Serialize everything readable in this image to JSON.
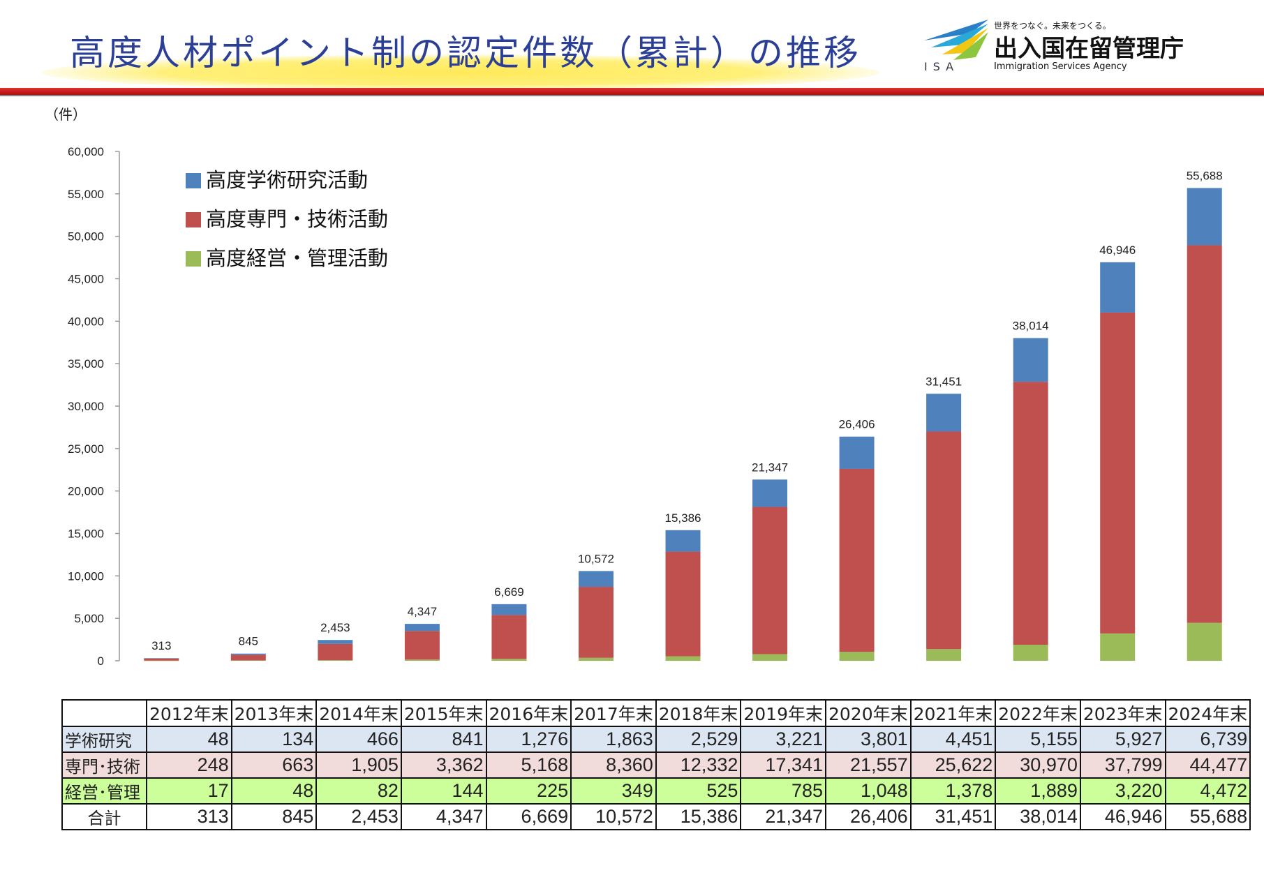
{
  "header": {
    "title": "高度人材ポイント制の認定件数（累計）の推移",
    "logo_org": "出入国在留管理庁",
    "logo_tagline": "世界をつなぐ。未来をつくる。",
    "logo_en": "Immigration Services Agency",
    "logo_abbr": "ISA"
  },
  "colors": {
    "academic": "#4f81bd",
    "professional": "#c0504d",
    "management": "#9bbb59",
    "title": "#2b3f96",
    "redbar": "#cc1111"
  },
  "chart_data": {
    "type": "bar",
    "stacked": true,
    "unit_label": "（件）",
    "categories": [
      "2012年末",
      "2013年末",
      "2014年末",
      "2015年末",
      "2016年末",
      "2017年末",
      "2018年末",
      "2019年末",
      "2020年末",
      "2021年末",
      "2022年末",
      "2023年末",
      "2024年末"
    ],
    "series": [
      {
        "name": "高度経営・管理活動",
        "key": "management",
        "values": [
          17,
          48,
          82,
          144,
          225,
          349,
          525,
          785,
          1048,
          1378,
          1889,
          3220,
          4472
        ]
      },
      {
        "name": "高度専門・技術活動",
        "key": "professional",
        "values": [
          248,
          663,
          1905,
          3362,
          5168,
          8360,
          12332,
          17341,
          21557,
          25622,
          30970,
          37799,
          44477
        ]
      },
      {
        "name": "高度学術研究活動",
        "key": "academic",
        "values": [
          48,
          134,
          466,
          841,
          1276,
          1863,
          2529,
          3221,
          3801,
          4451,
          5155,
          5927,
          6739
        ]
      }
    ],
    "totals": [
      313,
      845,
      2453,
      4347,
      6669,
      10572,
      15386,
      21347,
      26406,
      31451,
      38014,
      46946,
      55688
    ],
    "total_labels": [
      "313",
      "845",
      "2,453",
      "4,347",
      "6,669",
      "10,572",
      "15,386",
      "21,347",
      "26,406",
      "31,451",
      "38,014",
      "46,946",
      "55,688"
    ],
    "legend": [
      "高度学術研究活動",
      "高度専門・技術活動",
      "高度経営・管理活動"
    ],
    "legend_position": "top-left",
    "ylim": [
      0,
      60000
    ],
    "yticks": [
      0,
      5000,
      10000,
      15000,
      20000,
      25000,
      30000,
      35000,
      40000,
      45000,
      50000,
      55000,
      60000
    ],
    "ytick_labels": [
      "0",
      "5,000",
      "10,000",
      "15,000",
      "20,000",
      "25,000",
      "30,000",
      "35,000",
      "40,000",
      "45,000",
      "50,000",
      "55,000",
      "60,000"
    ]
  },
  "table": {
    "columns": [
      "2012年末",
      "2013年末",
      "2014年末",
      "2015年末",
      "2016年末",
      "2017年末",
      "2018年末",
      "2019年末",
      "2020年末",
      "2021年末",
      "2022年末",
      "2023年末",
      "2024年末"
    ],
    "rows": [
      {
        "label": "学術研究",
        "key": "academic",
        "cells": [
          "48",
          "134",
          "466",
          "841",
          "1,276",
          "1,863",
          "2,529",
          "3,221",
          "3,801",
          "4,451",
          "5,155",
          "5,927",
          "6,739"
        ]
      },
      {
        "label": "専門･技術",
        "key": "pro",
        "cells": [
          "248",
          "663",
          "1,905",
          "3,362",
          "5,168",
          "8,360",
          "12,332",
          "17,341",
          "21,557",
          "25,622",
          "30,970",
          "37,799",
          "44,477"
        ]
      },
      {
        "label": "経営･管理",
        "key": "mgmt",
        "cells": [
          "17",
          "48",
          "82",
          "144",
          "225",
          "349",
          "525",
          "785",
          "1,048",
          "1,378",
          "1,889",
          "3,220",
          "4,472"
        ]
      },
      {
        "label": "合計",
        "key": "total",
        "cells": [
          "313",
          "845",
          "2,453",
          "4,347",
          "6,669",
          "10,572",
          "15,386",
          "21,347",
          "26,406",
          "31,451",
          "38,014",
          "46,946",
          "55,688"
        ]
      }
    ]
  }
}
